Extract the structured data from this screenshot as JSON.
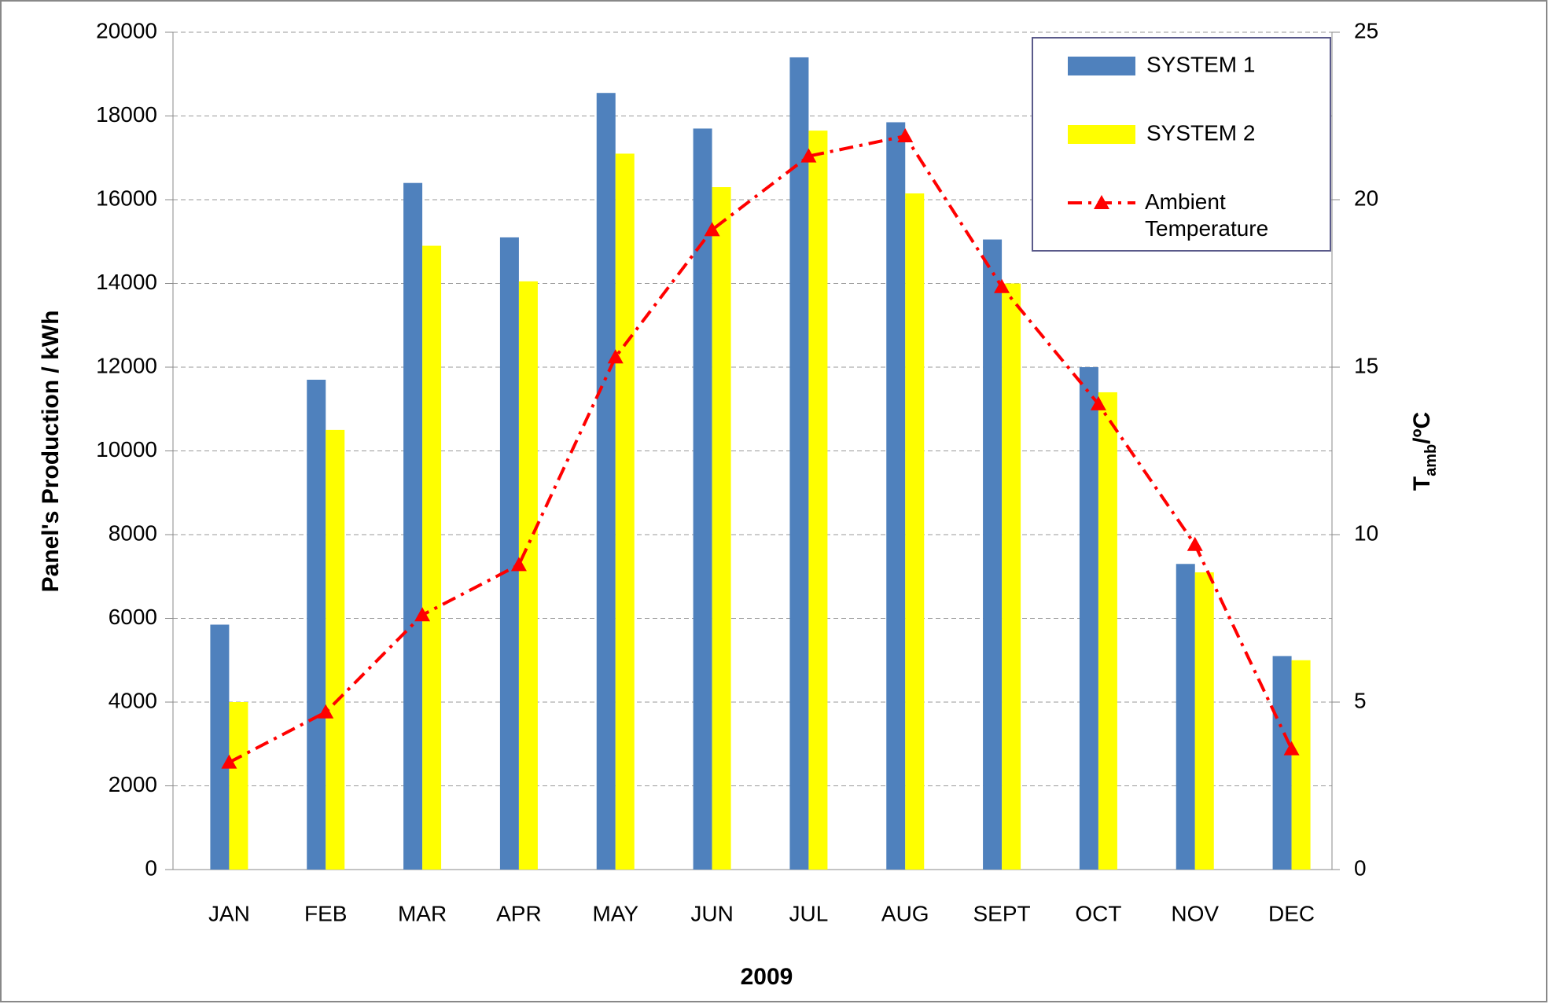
{
  "chart_data": {
    "type": "bar",
    "x_label": "2009",
    "y_label": "Panel's Production / kWh",
    "y2_label": {
      "main": "T",
      "sub": "amb",
      "unit": "/ºC"
    },
    "categories": [
      "JAN",
      "FEB",
      "MAR",
      "APR",
      "MAY",
      "JUN",
      "JUL",
      "AUG",
      "SEPT",
      "OCT",
      "NOV",
      "DEC"
    ],
    "series": [
      {
        "name": "SYSTEM 1",
        "type": "bar",
        "color": "#4f81bd",
        "values": [
          5850,
          11700,
          16400,
          15100,
          18550,
          17700,
          19400,
          17850,
          15050,
          12000,
          7300,
          5100
        ]
      },
      {
        "name": "SYSTEM 2",
        "type": "bar",
        "color": "#ffff00",
        "values": [
          4000,
          10500,
          14900,
          14050,
          17100,
          16300,
          17650,
          16150,
          14000,
          11400,
          7100,
          5000
        ]
      },
      {
        "name": "Ambient Temperature",
        "type": "line",
        "axis": "y2",
        "color": "#ff0000",
        "values": [
          3.2,
          4.7,
          7.6,
          9.1,
          15.3,
          19.1,
          21.3,
          21.9,
          17.4,
          13.9,
          9.7,
          3.6
        ]
      }
    ],
    "ylim": [
      0,
      20000
    ],
    "yticks": [
      0,
      2000,
      4000,
      6000,
      8000,
      10000,
      12000,
      14000,
      16000,
      18000,
      20000
    ],
    "y2lim": [
      0,
      25
    ],
    "y2ticks": [
      0,
      5,
      10,
      15,
      20,
      25
    ],
    "grid": true,
    "legend": "top-right"
  }
}
